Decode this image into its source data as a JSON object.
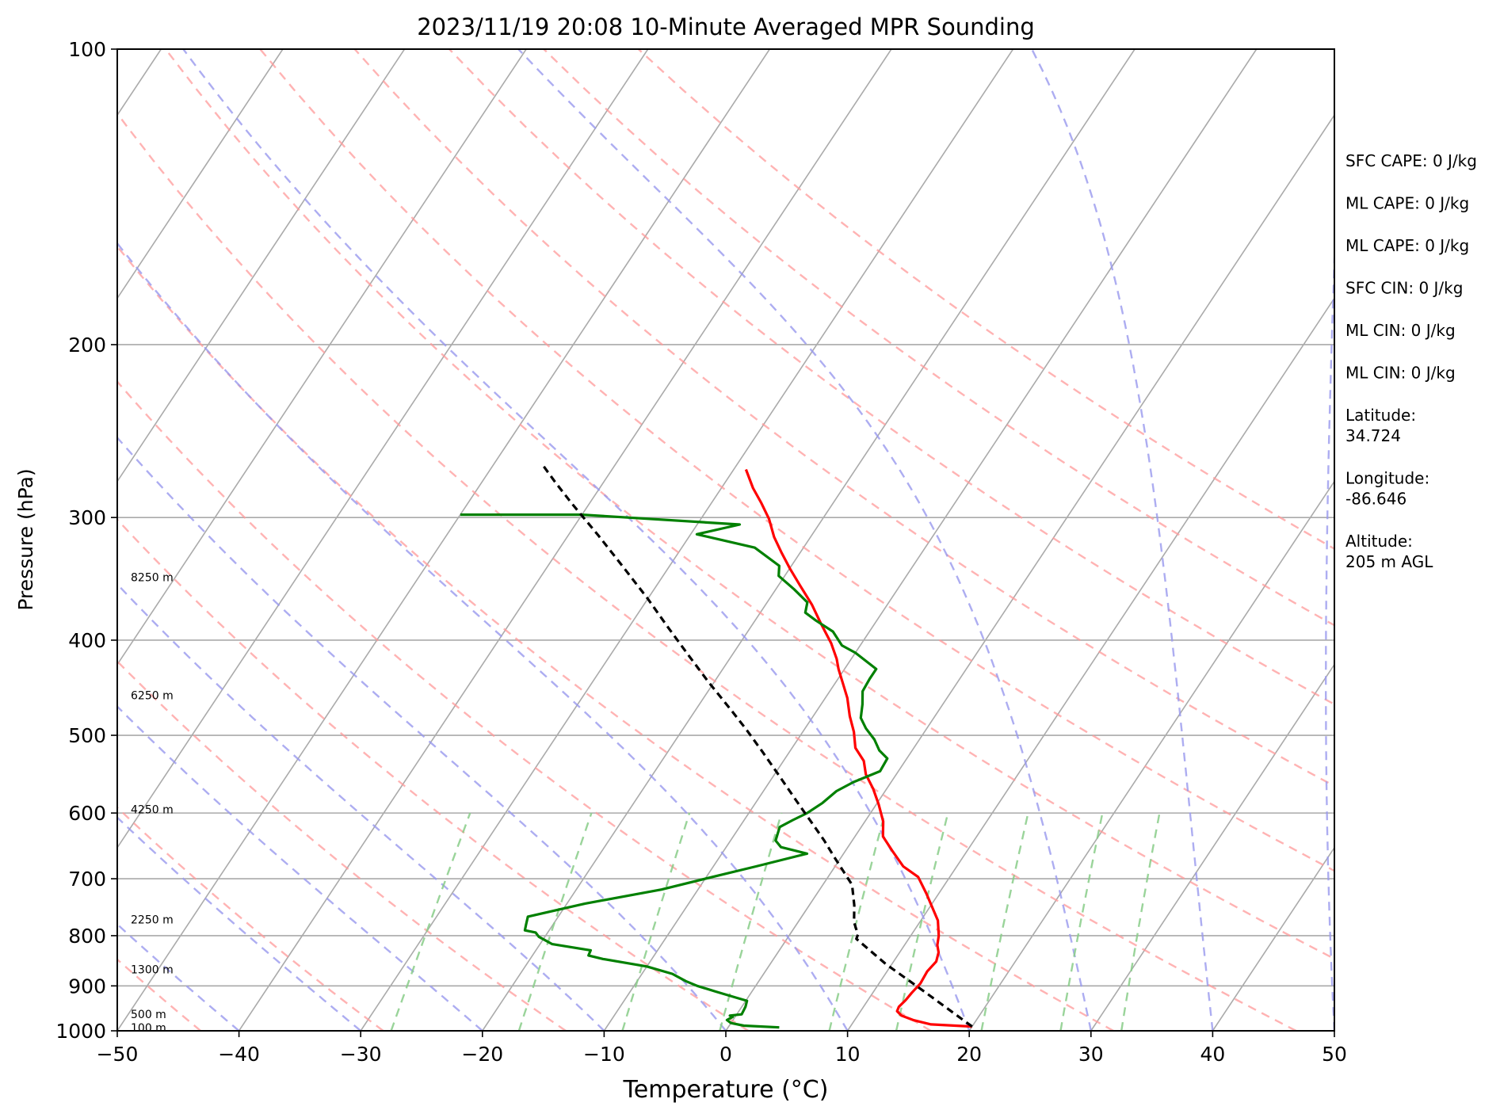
{
  "chart_data": {
    "type": "line",
    "subtype": "skew-t log-p sounding",
    "title": "2023/11/19 20:08 10-Minute Averaged MPR Sounding",
    "xlabel": "Temperature (°C)",
    "ylabel": "Pressure (hPa)",
    "xlim": [
      -50,
      50
    ],
    "ylim": [
      1000,
      100
    ],
    "y_scale": "log",
    "grid": true,
    "x_ticks": [
      "−50",
      "−40",
      "−30",
      "−20",
      "−10",
      "0",
      "10",
      "20",
      "30",
      "40",
      "50"
    ],
    "y_ticks": [
      "100",
      "200",
      "300",
      "400",
      "500",
      "600",
      "700",
      "800",
      "900",
      "1000"
    ],
    "colors": {
      "temperature": "#ff0000",
      "dewpoint": "#008000",
      "parcel": "#000000",
      "dry_adiabat": "#ff9999",
      "moist_adiabat": "#9999ee",
      "mixing_ratio": "#88cc88",
      "isotherm": "#aaaaaa"
    },
    "series": [
      {
        "key": "temperature",
        "points": [
          [
            20.0,
            990
          ],
          [
            16.5,
            985
          ],
          [
            14.8,
            975
          ],
          [
            13.6,
            965
          ],
          [
            13.0,
            955
          ],
          [
            12.9,
            945
          ],
          [
            13.1,
            930
          ],
          [
            13.2,
            915
          ],
          [
            13.4,
            895
          ],
          [
            13.3,
            870
          ],
          [
            13.5,
            850
          ],
          [
            13.2,
            832
          ],
          [
            12.7,
            818
          ],
          [
            12.3,
            800
          ],
          [
            11.4,
            772
          ],
          [
            9.0,
            725
          ],
          [
            7.4,
            697
          ],
          [
            5.6,
            680
          ],
          [
            3.8,
            655
          ],
          [
            2.3,
            634
          ],
          [
            1.5,
            612
          ],
          [
            0.2,
            588
          ],
          [
            -1.1,
            567
          ],
          [
            -2.5,
            548
          ],
          [
            -3.4,
            531
          ],
          [
            -4.8,
            515
          ],
          [
            -5.8,
            496
          ],
          [
            -7.0,
            478
          ],
          [
            -8.2,
            458
          ],
          [
            -9.4,
            442
          ],
          [
            -10.5,
            428
          ],
          [
            -11.2,
            418
          ],
          [
            -12.5,
            403
          ],
          [
            -14.5,
            384
          ],
          [
            -16.2,
            368
          ],
          [
            -18.2,
            352
          ],
          [
            -20.0,
            338
          ],
          [
            -21.5,
            326
          ],
          [
            -23.0,
            314
          ],
          [
            -24.4,
            301
          ],
          [
            -25.9,
            290
          ],
          [
            -27.4,
            280
          ],
          [
            -29.0,
            268
          ]
        ]
      },
      {
        "key": "dewpoint",
        "points": [
          [
            4.2,
            992
          ],
          [
            1.2,
            988
          ],
          [
            0.0,
            982
          ],
          [
            -0.5,
            975
          ],
          [
            -0.2,
            968
          ],
          [
            -0.5,
            965
          ],
          [
            0.4,
            962
          ],
          [
            0.3,
            945
          ],
          [
            0.1,
            932
          ],
          [
            -1.0,
            925
          ],
          [
            -3.0,
            912
          ],
          [
            -4.8,
            900
          ],
          [
            -6.0,
            890
          ],
          [
            -7.5,
            875
          ],
          [
            -10.0,
            860
          ],
          [
            -14.0,
            845
          ],
          [
            -15.4,
            838
          ],
          [
            -15.5,
            828
          ],
          [
            -19.0,
            816
          ],
          [
            -20.5,
            802
          ],
          [
            -21.0,
            794
          ],
          [
            -22.0,
            790
          ],
          [
            -22.2,
            780
          ],
          [
            -22.5,
            765
          ],
          [
            -18.5,
            742
          ],
          [
            -13.0,
            718
          ],
          [
            -9.5,
            697
          ],
          [
            -6.5,
            680
          ],
          [
            -3.0,
            660
          ],
          [
            -5.5,
            650
          ],
          [
            -6.3,
            640
          ],
          [
            -6.7,
            620
          ],
          [
            -6.0,
            610
          ],
          [
            -5.2,
            600
          ],
          [
            -4.5,
            586
          ],
          [
            -4.0,
            570
          ],
          [
            -3.1,
            558
          ],
          [
            -1.5,
            544
          ],
          [
            -1.6,
            528
          ],
          [
            -2.7,
            518
          ],
          [
            -3.7,
            505
          ],
          [
            -5.0,
            492
          ],
          [
            -6.0,
            480
          ],
          [
            -6.6,
            465
          ],
          [
            -7.3,
            451
          ],
          [
            -7.4,
            438
          ],
          [
            -7.4,
            428
          ],
          [
            -10.0,
            412
          ],
          [
            -11.5,
            405
          ],
          [
            -13.0,
            392
          ],
          [
            -15.0,
            382
          ],
          [
            -16.3,
            375
          ],
          [
            -16.7,
            366
          ],
          [
            -18.5,
            355
          ],
          [
            -20.5,
            344
          ],
          [
            -21.0,
            336
          ],
          [
            -24.0,
            322
          ],
          [
            -29.5,
            312
          ],
          [
            -26.5,
            305
          ],
          [
            -40.0,
            298
          ],
          [
            -50.0,
            298
          ]
        ]
      },
      {
        "key": "parcel",
        "points": [
          [
            20.0,
            990
          ],
          [
            14.0,
            910
          ],
          [
            9.5,
            855
          ],
          [
            5.7,
            806
          ],
          [
            5.6,
            798
          ],
          [
            4.6,
            775
          ],
          [
            3.7,
            745
          ],
          [
            2.4,
            710
          ],
          [
            -0.6,
            665
          ],
          [
            -2.3,
            640
          ],
          [
            -4.6,
            610
          ],
          [
            -6.6,
            585
          ],
          [
            -9.7,
            548
          ],
          [
            -12.2,
            520
          ],
          [
            -14.8,
            493
          ],
          [
            -17.0,
            472
          ],
          [
            -20.5,
            441
          ],
          [
            -23.5,
            415
          ],
          [
            -26.8,
            388
          ],
          [
            -30.0,
            363
          ],
          [
            -33.6,
            338
          ],
          [
            -37.5,
            313
          ],
          [
            -41.5,
            290
          ],
          [
            -44.0,
            276
          ],
          [
            -45.8,
            266
          ]
        ]
      }
    ],
    "height_labels": [
      {
        "text": "8250 m",
        "p": 345
      },
      {
        "text": "6250 m",
        "p": 455
      },
      {
        "text": "4250 m",
        "p": 595
      },
      {
        "text": "2250 m",
        "p": 770
      },
      {
        "text": "1300 m",
        "p": 866
      },
      {
        "text": "500 m",
        "p": 962
      },
      {
        "text": "100 m",
        "p": 993
      }
    ],
    "mixing_ratio_bases": [
      -27.5,
      -17.0,
      -8.5,
      -0.5,
      8.5,
      14.0,
      21.0,
      27.5,
      32.5
    ],
    "moist_adiabat_bases": [
      -50,
      -40,
      -30,
      -20,
      -10,
      0,
      10,
      20,
      30,
      40,
      50
    ],
    "dry_adiabat_thetas": [
      230,
      245,
      260,
      275,
      290,
      305,
      320,
      335,
      350,
      365,
      380,
      395,
      410
    ],
    "annotations": [
      "SFC CAPE: 0 J/kg",
      "ML CAPE: 0 J/kg",
      "ML CAPE: 0 J/kg",
      "SFC CIN: 0 J/kg",
      "ML CIN: 0 J/kg",
      "ML CIN: 0 J/kg",
      "Latitude:\n34.724",
      "Longitude:\n-86.646",
      "Altitude:\n205 m AGL"
    ]
  }
}
